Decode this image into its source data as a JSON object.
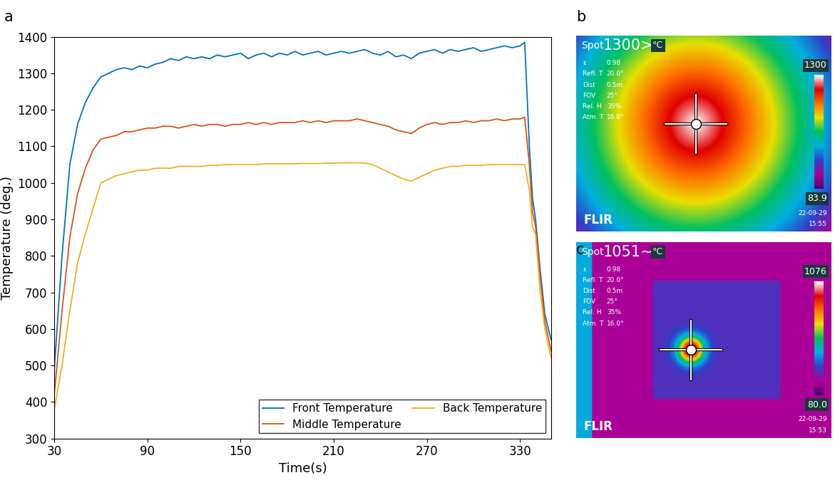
{
  "chart_data": [
    {
      "type": "line",
      "panel": "a",
      "x_label": "Time(s)",
      "y_label": "Temperature (deg.)",
      "x": [
        30,
        35,
        40,
        45,
        50,
        55,
        60,
        65,
        70,
        75,
        80,
        85,
        90,
        95,
        100,
        105,
        110,
        115,
        120,
        125,
        130,
        135,
        140,
        145,
        150,
        155,
        160,
        165,
        170,
        175,
        180,
        185,
        190,
        195,
        200,
        205,
        210,
        215,
        220,
        225,
        230,
        235,
        240,
        245,
        250,
        255,
        260,
        265,
        270,
        275,
        280,
        285,
        290,
        295,
        300,
        305,
        310,
        315,
        320,
        325,
        330,
        333,
        336,
        338,
        340,
        343,
        346,
        350
      ],
      "series": [
        {
          "name": "Front Temperature",
          "color": "#0072BD",
          "values": [
            490,
            800,
            1050,
            1160,
            1220,
            1260,
            1290,
            1300,
            1310,
            1315,
            1310,
            1320,
            1315,
            1325,
            1330,
            1340,
            1335,
            1345,
            1340,
            1345,
            1340,
            1350,
            1345,
            1350,
            1355,
            1340,
            1350,
            1355,
            1345,
            1355,
            1350,
            1360,
            1350,
            1355,
            1360,
            1350,
            1355,
            1360,
            1355,
            1360,
            1365,
            1355,
            1350,
            1360,
            1345,
            1350,
            1340,
            1355,
            1360,
            1365,
            1355,
            1365,
            1360,
            1365,
            1370,
            1360,
            1365,
            1370,
            1375,
            1370,
            1375,
            1385,
            1100,
            960,
            900,
            760,
            640,
            570
          ]
        },
        {
          "name": "Middle Temperature",
          "color": "#D95319",
          "values": [
            420,
            650,
            850,
            970,
            1040,
            1090,
            1120,
            1125,
            1130,
            1140,
            1140,
            1145,
            1150,
            1150,
            1155,
            1155,
            1150,
            1155,
            1160,
            1155,
            1160,
            1160,
            1155,
            1160,
            1160,
            1165,
            1160,
            1165,
            1160,
            1165,
            1165,
            1165,
            1170,
            1165,
            1170,
            1165,
            1170,
            1170,
            1170,
            1175,
            1170,
            1165,
            1160,
            1155,
            1145,
            1140,
            1135,
            1150,
            1160,
            1165,
            1160,
            1165,
            1165,
            1170,
            1165,
            1170,
            1170,
            1175,
            1170,
            1175,
            1175,
            1180,
            1050,
            920,
            880,
            740,
            620,
            540
          ]
        },
        {
          "name": "Back Temperature",
          "color": "#EDB120",
          "values": [
            380,
            500,
            650,
            780,
            860,
            930,
            1000,
            1010,
            1020,
            1025,
            1030,
            1035,
            1035,
            1040,
            1040,
            1040,
            1045,
            1045,
            1045,
            1045,
            1048,
            1048,
            1050,
            1050,
            1050,
            1050,
            1050,
            1052,
            1052,
            1052,
            1052,
            1052,
            1053,
            1053,
            1053,
            1054,
            1054,
            1055,
            1055,
            1055,
            1054,
            1050,
            1040,
            1030,
            1020,
            1010,
            1005,
            1015,
            1025,
            1035,
            1040,
            1045,
            1045,
            1048,
            1048,
            1048,
            1050,
            1050,
            1050,
            1050,
            1050,
            1050,
            980,
            880,
            860,
            700,
            600,
            520
          ]
        }
      ],
      "xlim": [
        30,
        350
      ],
      "xticks": [
        30,
        90,
        150,
        210,
        270,
        330
      ],
      "ylim": [
        300,
        1400
      ],
      "yticks": [
        300,
        400,
        500,
        600,
        700,
        800,
        900,
        1000,
        1100,
        1200,
        1300,
        1400
      ],
      "grid": false,
      "legend": "lower right"
    },
    {
      "type": "thermal_image",
      "panel": "b",
      "spot": "Spot",
      "spot_reading": "1300>",
      "unit": "°C",
      "parameters": [
        [
          "ε",
          "0.98"
        ],
        [
          "Refl. T",
          "20.0°"
        ],
        [
          "Dist",
          "0.5m"
        ],
        [
          "FOV",
          "25°"
        ],
        [
          "Rel. H",
          "35%"
        ],
        [
          "Atm. T",
          "16.0°"
        ]
      ],
      "scale_max": 1300,
      "scale_min": 83.9,
      "date": "22-09-29",
      "time": "15:55",
      "brand": "FLIR"
    },
    {
      "type": "thermal_image",
      "panel": "c",
      "spot": "Spot",
      "spot_reading": "1051~",
      "unit": "°C",
      "parameters": [
        [
          "ε",
          "0.98"
        ],
        [
          "Refl. T",
          "20.0°"
        ],
        [
          "Dist",
          "0.5m"
        ],
        [
          "FOV",
          "25°"
        ],
        [
          "Rel. H",
          "35%"
        ],
        [
          "Atm. T",
          "16.0°"
        ]
      ],
      "scale_max": 1076,
      "scale_min": 80.0,
      "date": "22-09-29",
      "time": "15:53",
      "brand": "FLIR"
    }
  ]
}
